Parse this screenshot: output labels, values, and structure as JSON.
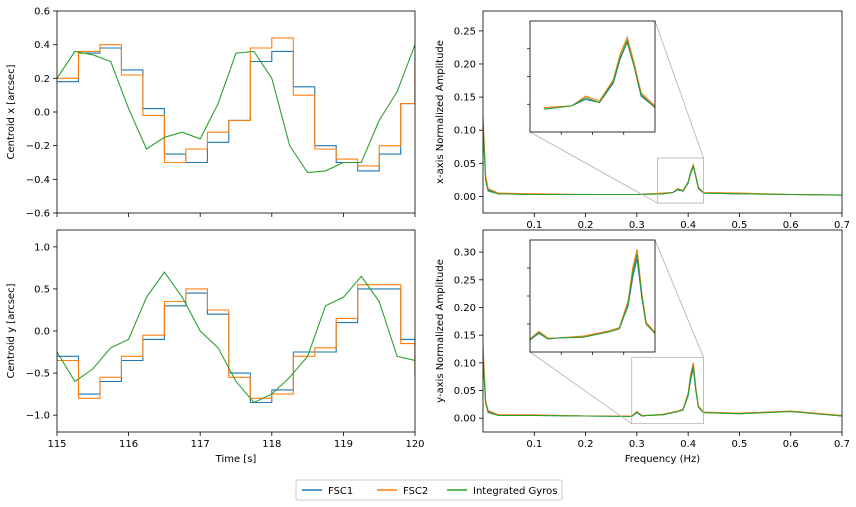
{
  "colors": {
    "FSC1": "#1f77b4",
    "FSC2": "#ff7f0e",
    "Integrated Gyros": "#2ca02c",
    "inset_box": "#b0b0b0"
  },
  "legend": {
    "placement": "bottom-center",
    "entries": [
      "FSC1",
      "FSC2",
      "Integrated Gyros"
    ]
  },
  "chart_data": [
    {
      "id": "centroid_x",
      "type": "line",
      "xlabel": "",
      "ylabel": "Centroid x [arcsec]",
      "xlim": [
        115,
        120
      ],
      "ylim": [
        -0.6,
        0.6
      ],
      "xticks": [
        "115",
        "116",
        "117",
        "118",
        "119",
        "120"
      ],
      "yticks": [
        "−0.6",
        "−0.4",
        "−0.2",
        "0.0",
        "0.2",
        "0.4",
        "0.6"
      ],
      "series": [
        {
          "name": "FSC1",
          "x": [
            115.0,
            115.3,
            115.6,
            115.9,
            116.2,
            116.5,
            116.8,
            117.1,
            117.4,
            117.7,
            118.0,
            118.3,
            118.6,
            118.9,
            119.2,
            119.5,
            119.8,
            120.0
          ],
          "y": [
            0.18,
            0.35,
            0.38,
            0.25,
            0.02,
            -0.25,
            -0.3,
            -0.18,
            -0.05,
            0.3,
            0.36,
            0.15,
            -0.2,
            -0.3,
            -0.35,
            -0.25,
            0.05,
            0.35
          ]
        },
        {
          "name": "FSC2",
          "x": [
            115.0,
            115.3,
            115.6,
            115.9,
            116.2,
            116.5,
            116.8,
            117.1,
            117.4,
            117.7,
            118.0,
            118.3,
            118.6,
            118.9,
            119.2,
            119.5,
            119.8,
            120.0
          ],
          "y": [
            0.2,
            0.36,
            0.4,
            0.22,
            -0.02,
            -0.3,
            -0.22,
            -0.12,
            -0.05,
            0.38,
            0.44,
            0.1,
            -0.22,
            -0.28,
            -0.32,
            -0.2,
            0.05,
            0.3
          ]
        },
        {
          "name": "Integrated Gyros",
          "x": [
            115.0,
            115.25,
            115.5,
            115.75,
            116.0,
            116.25,
            116.5,
            116.75,
            117.0,
            117.25,
            117.5,
            117.75,
            118.0,
            118.25,
            118.5,
            118.75,
            119.0,
            119.25,
            119.5,
            119.75,
            120.0
          ],
          "y": [
            0.2,
            0.36,
            0.34,
            0.3,
            0.02,
            -0.22,
            -0.15,
            -0.12,
            -0.16,
            0.05,
            0.35,
            0.36,
            0.2,
            -0.2,
            -0.36,
            -0.35,
            -0.3,
            -0.3,
            -0.05,
            0.12,
            0.4
          ]
        }
      ]
    },
    {
      "id": "centroid_y",
      "type": "line",
      "xlabel": "Time [s]",
      "ylabel": "Centroid y [arcsec]",
      "xlim": [
        115,
        120
      ],
      "ylim": [
        -1.2,
        1.2
      ],
      "xticks": [
        "115",
        "116",
        "117",
        "118",
        "119",
        "120"
      ],
      "yticks": [
        "−1.0",
        "−0.5",
        "0.0",
        "0.5",
        "1.0"
      ],
      "series": [
        {
          "name": "FSC1",
          "x": [
            115.0,
            115.3,
            115.6,
            115.9,
            116.2,
            116.5,
            116.8,
            117.1,
            117.4,
            117.7,
            118.0,
            118.3,
            118.6,
            118.9,
            119.2,
            119.5,
            119.8,
            120.0
          ],
          "y": [
            -0.3,
            -0.75,
            -0.6,
            -0.35,
            -0.1,
            0.3,
            0.45,
            0.2,
            -0.5,
            -0.85,
            -0.7,
            -0.25,
            -0.25,
            0.1,
            0.5,
            0.5,
            -0.1,
            -0.55
          ]
        },
        {
          "name": "FSC2",
          "x": [
            115.0,
            115.3,
            115.6,
            115.9,
            116.2,
            116.5,
            116.8,
            117.1,
            117.4,
            117.7,
            118.0,
            118.3,
            118.6,
            118.9,
            119.2,
            119.5,
            119.8,
            120.0
          ],
          "y": [
            -0.35,
            -0.8,
            -0.55,
            -0.3,
            -0.05,
            0.35,
            0.5,
            0.25,
            -0.55,
            -0.8,
            -0.75,
            -0.3,
            -0.2,
            0.15,
            0.55,
            0.55,
            -0.15,
            -0.5
          ]
        },
        {
          "name": "Integrated Gyros",
          "x": [
            115.0,
            115.25,
            115.5,
            115.75,
            116.0,
            116.25,
            116.5,
            116.75,
            117.0,
            117.25,
            117.5,
            117.75,
            118.0,
            118.25,
            118.5,
            118.75,
            119.0,
            119.25,
            119.5,
            119.75,
            120.0
          ],
          "y": [
            -0.25,
            -0.6,
            -0.45,
            -0.2,
            -0.1,
            0.4,
            0.7,
            0.4,
            0.0,
            -0.2,
            -0.6,
            -0.85,
            -0.75,
            -0.55,
            -0.3,
            0.3,
            0.4,
            0.65,
            0.35,
            -0.3,
            -0.35
          ]
        }
      ]
    },
    {
      "id": "spectrum_x",
      "type": "line",
      "xlabel": "",
      "ylabel": "x-axis Normalized Amplitude",
      "xlim": [
        0.0,
        0.7
      ],
      "ylim": [
        -0.025,
        0.28
      ],
      "xticks": [
        "0.1",
        "0.2",
        "0.3",
        "0.4",
        "0.5",
        "0.6",
        "0.7"
      ],
      "yticks": [
        "0.00",
        "0.05",
        "0.10",
        "0.15",
        "0.20",
        "0.25"
      ],
      "inset": {
        "xlim": [
          0.34,
          0.43
        ],
        "ylim": [
          -0.01,
          0.058
        ]
      },
      "series": [
        {
          "name": "FSC1",
          "x": [
            0.0,
            0.005,
            0.01,
            0.03,
            0.1,
            0.2,
            0.3,
            0.35,
            0.37,
            0.38,
            0.39,
            0.4,
            0.405,
            0.41,
            0.415,
            0.42,
            0.43,
            0.5,
            0.6,
            0.7
          ],
          "y": [
            0.1,
            0.03,
            0.01,
            0.004,
            0.003,
            0.003,
            0.003,
            0.004,
            0.006,
            0.01,
            0.008,
            0.02,
            0.035,
            0.045,
            0.03,
            0.012,
            0.005,
            0.004,
            0.003,
            0.002
          ]
        },
        {
          "name": "FSC2",
          "x": [
            0.0,
            0.005,
            0.01,
            0.03,
            0.1,
            0.2,
            0.3,
            0.35,
            0.37,
            0.38,
            0.39,
            0.4,
            0.405,
            0.41,
            0.415,
            0.42,
            0.43,
            0.5,
            0.6,
            0.7
          ],
          "y": [
            0.12,
            0.032,
            0.012,
            0.005,
            0.004,
            0.003,
            0.003,
            0.005,
            0.006,
            0.012,
            0.009,
            0.022,
            0.038,
            0.048,
            0.032,
            0.014,
            0.006,
            0.005,
            0.003,
            0.002
          ]
        },
        {
          "name": "Integrated Gyros",
          "x": [
            0.0,
            0.005,
            0.01,
            0.03,
            0.1,
            0.2,
            0.3,
            0.35,
            0.37,
            0.38,
            0.39,
            0.4,
            0.405,
            0.41,
            0.415,
            0.42,
            0.43,
            0.5,
            0.6,
            0.7
          ],
          "y": [
            0.11,
            0.025,
            0.008,
            0.004,
            0.003,
            0.003,
            0.003,
            0.004,
            0.006,
            0.011,
            0.008,
            0.021,
            0.036,
            0.046,
            0.03,
            0.013,
            0.005,
            0.004,
            0.003,
            0.002
          ]
        }
      ]
    },
    {
      "id": "spectrum_y",
      "type": "line",
      "xlabel": "Frequency (Hz)",
      "ylabel": "y-axis Normalized Amplitude",
      "xlim": [
        0.0,
        0.7
      ],
      "ylim": [
        -0.025,
        0.34
      ],
      "xticks": [
        "0.1",
        "0.2",
        "0.3",
        "0.4",
        "0.5",
        "0.6",
        "0.7"
      ],
      "yticks": [
        "0.00",
        "0.05",
        "0.10",
        "0.15",
        "0.20",
        "0.25",
        "0.30"
      ],
      "inset": {
        "xlim": [
          0.29,
          0.43
        ],
        "ylim": [
          -0.01,
          0.11
        ]
      },
      "series": [
        {
          "name": "FSC1",
          "x": [
            0.0,
            0.005,
            0.01,
            0.03,
            0.1,
            0.2,
            0.29,
            0.3,
            0.31,
            0.32,
            0.35,
            0.38,
            0.39,
            0.4,
            0.405,
            0.41,
            0.415,
            0.42,
            0.43,
            0.5,
            0.6,
            0.7
          ],
          "y": [
            0.12,
            0.03,
            0.012,
            0.005,
            0.005,
            0.004,
            0.003,
            0.01,
            0.004,
            0.005,
            0.006,
            0.012,
            0.015,
            0.04,
            0.07,
            0.09,
            0.05,
            0.02,
            0.01,
            0.008,
            0.012,
            0.004
          ]
        },
        {
          "name": "FSC2",
          "x": [
            0.0,
            0.005,
            0.01,
            0.03,
            0.1,
            0.2,
            0.29,
            0.3,
            0.31,
            0.32,
            0.35,
            0.38,
            0.39,
            0.4,
            0.405,
            0.41,
            0.415,
            0.42,
            0.43,
            0.5,
            0.6,
            0.7
          ],
          "y": [
            0.13,
            0.032,
            0.014,
            0.006,
            0.006,
            0.004,
            0.004,
            0.012,
            0.005,
            0.005,
            0.007,
            0.013,
            0.016,
            0.045,
            0.08,
            0.1,
            0.055,
            0.022,
            0.011,
            0.009,
            0.013,
            0.005
          ]
        },
        {
          "name": "Integrated Gyros",
          "x": [
            0.0,
            0.005,
            0.01,
            0.03,
            0.1,
            0.2,
            0.29,
            0.3,
            0.31,
            0.32,
            0.35,
            0.38,
            0.39,
            0.4,
            0.405,
            0.41,
            0.415,
            0.42,
            0.43,
            0.5,
            0.6,
            0.7
          ],
          "y": [
            0.11,
            0.028,
            0.01,
            0.005,
            0.005,
            0.004,
            0.003,
            0.011,
            0.004,
            0.005,
            0.006,
            0.012,
            0.015,
            0.042,
            0.075,
            0.095,
            0.052,
            0.02,
            0.01,
            0.008,
            0.012,
            0.004
          ]
        }
      ]
    }
  ]
}
